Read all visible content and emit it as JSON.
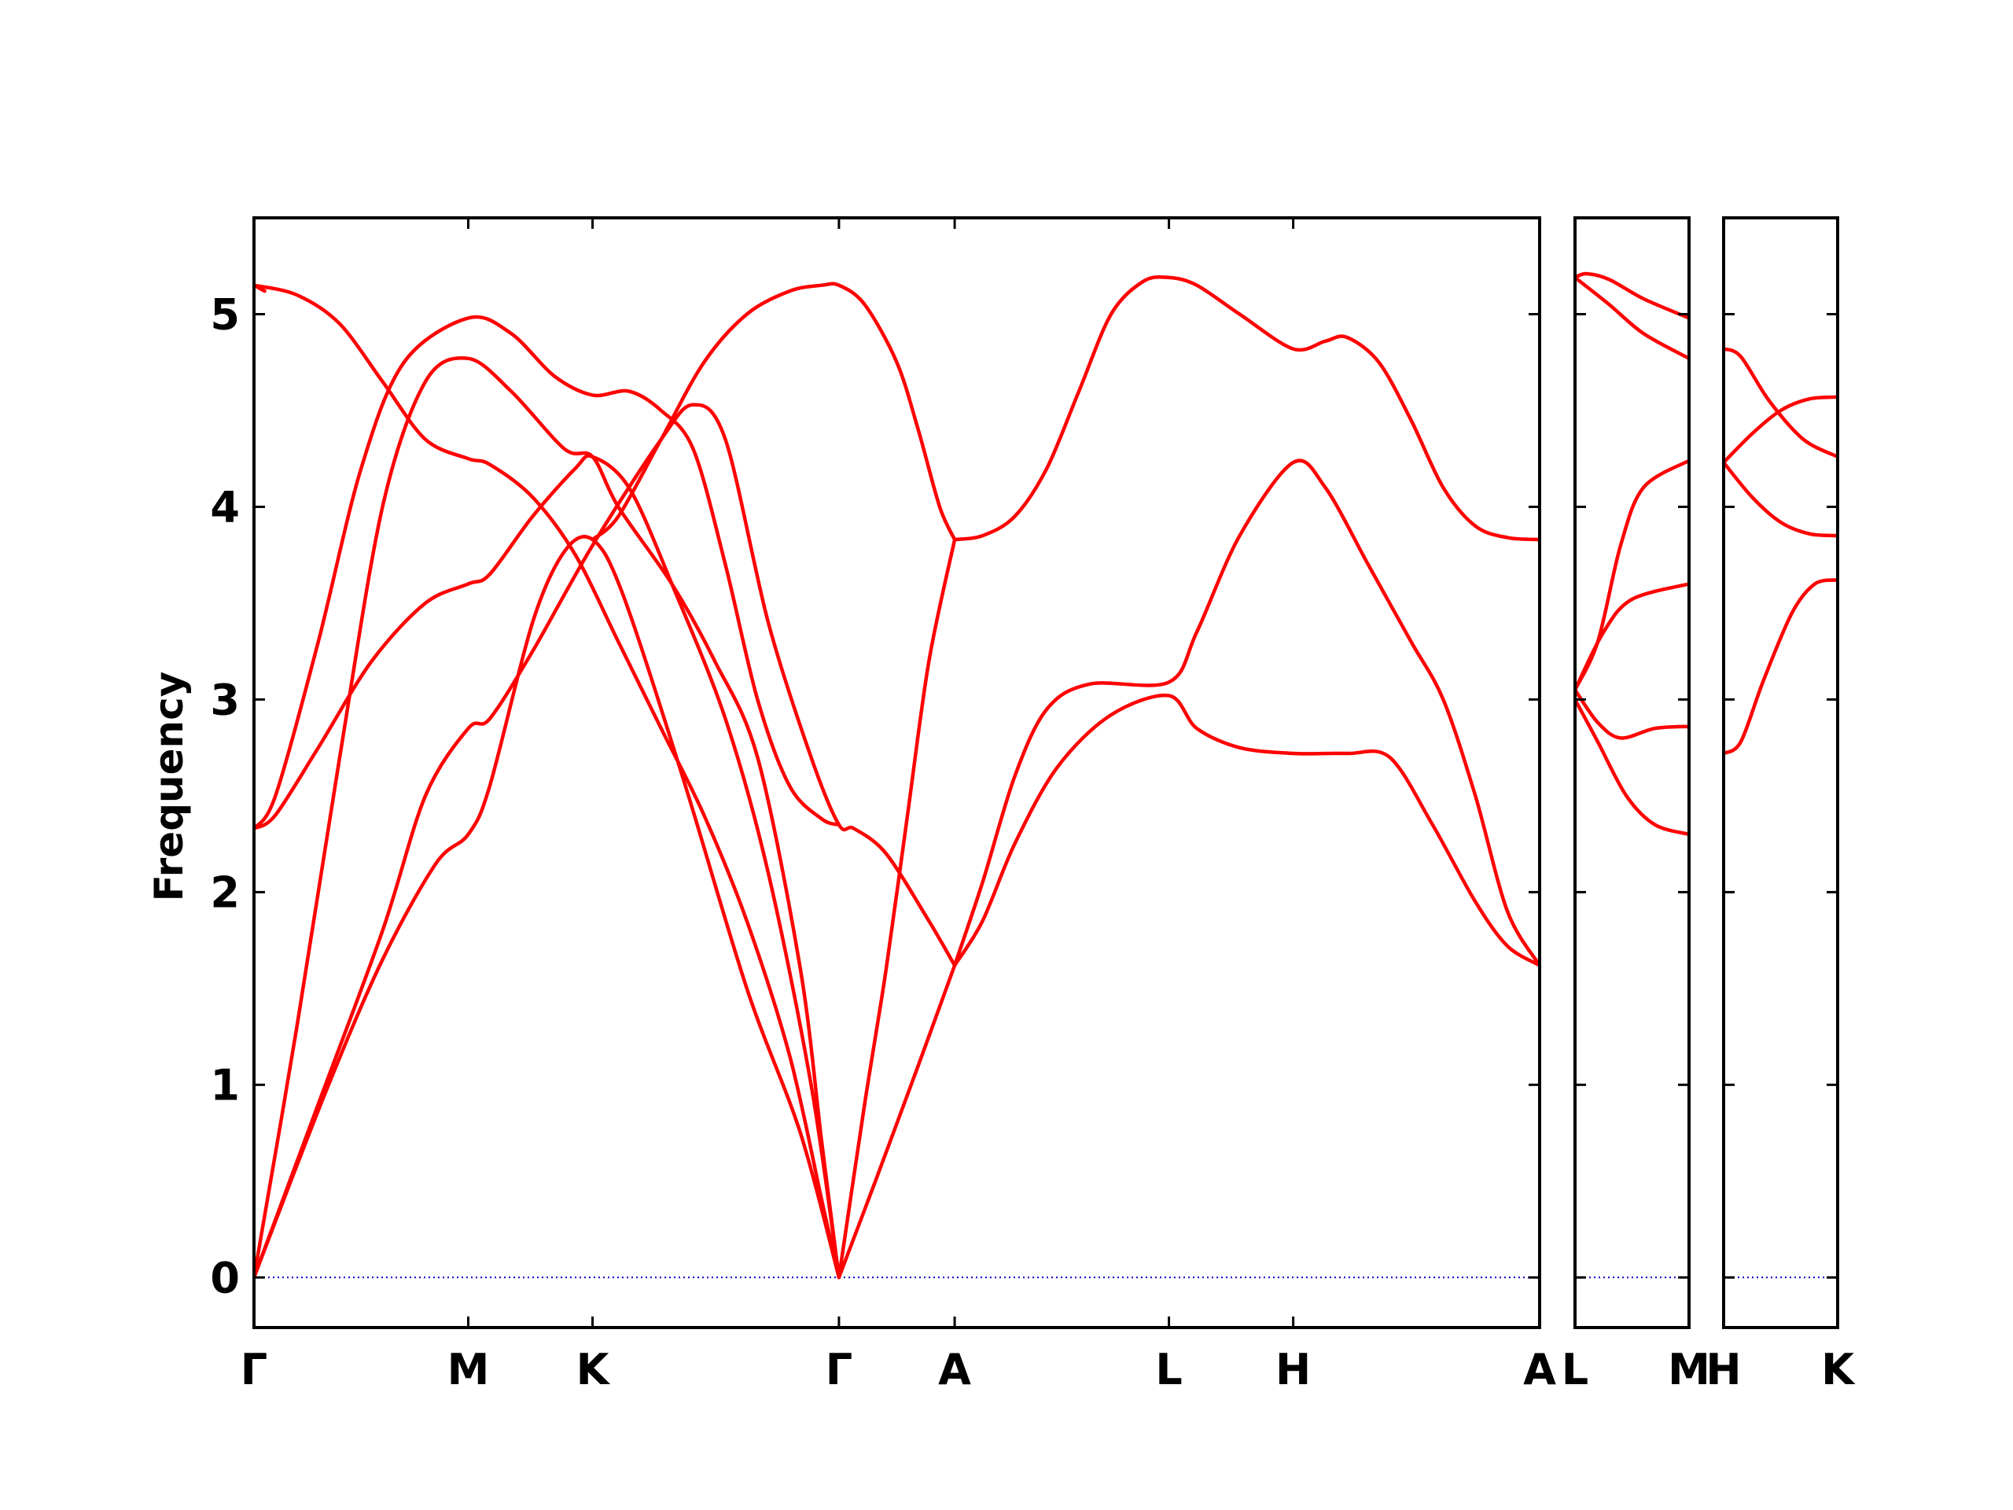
{
  "chart_data": {
    "type": "line",
    "ylabel": "Frequency",
    "ylim": [
      -0.26,
      5.5
    ],
    "yticks": [
      0,
      1,
      2,
      3,
      4,
      5
    ],
    "grid": false,
    "colors": {
      "bands": "#ff0000",
      "zero_line": "#0000cc",
      "axes": "#000000"
    },
    "panels": [
      {
        "xlim": [
          0,
          6.0
        ],
        "ticks": [
          {
            "x": 0,
            "label": "Γ"
          },
          {
            "x": 1.0,
            "label": "M"
          },
          {
            "x": 1.58,
            "label": "K"
          },
          {
            "x": 2.73,
            "label": "Γ"
          },
          {
            "x": 3.27,
            "label": "A"
          },
          {
            "x": 4.27,
            "label": "L"
          },
          {
            "x": 4.85,
            "label": "H"
          },
          {
            "x": 6.0,
            "label": "A"
          }
        ],
        "zero_line": true,
        "series": [
          {
            "points": [
              [
                0,
                0
              ],
              [
                0.33,
                0.95
              ],
              [
                0.6,
                1.65
              ],
              [
                0.85,
                2.15
              ],
              [
                1.0,
                2.3
              ],
              [
                1.1,
                2.55
              ],
              [
                1.3,
                3.4
              ],
              [
                1.45,
                3.77
              ],
              [
                1.58,
                3.83
              ],
              [
                1.72,
                3.55
              ],
              [
                2.0,
                2.6
              ],
              [
                2.3,
                1.5
              ],
              [
                2.55,
                0.75
              ],
              [
                2.73,
                0
              ]
            ]
          },
          {
            "points": [
              [
                0,
                0
              ],
              [
                0.3,
                0.9
              ],
              [
                0.6,
                1.8
              ],
              [
                0.8,
                2.5
              ],
              [
                1.0,
                2.85
              ],
              [
                1.1,
                2.9
              ],
              [
                1.3,
                3.25
              ],
              [
                1.58,
                3.8
              ],
              [
                1.9,
                4.35
              ],
              [
                2.05,
                4.53
              ],
              [
                2.2,
                4.35
              ],
              [
                2.4,
                3.4
              ],
              [
                2.6,
                2.7
              ],
              [
                2.73,
                2.35
              ],
              [
                2.8,
                2.33
              ],
              [
                2.95,
                2.2
              ],
              [
                3.15,
                1.85
              ],
              [
                3.27,
                1.62
              ]
            ]
          },
          {
            "points": [
              [
                0,
                0
              ],
              [
                0.2,
                1.3
              ],
              [
                0.4,
                2.7
              ],
              [
                0.6,
                4.0
              ],
              [
                0.8,
                4.65
              ],
              [
                1.0,
                4.77
              ],
              [
                1.2,
                4.6
              ],
              [
                1.45,
                4.3
              ],
              [
                1.58,
                4.26
              ],
              [
                1.7,
                4.0
              ],
              [
                1.95,
                3.6
              ],
              [
                2.15,
                3.2
              ],
              [
                2.35,
                2.7
              ],
              [
                2.55,
                1.6
              ],
              [
                2.65,
                0.7
              ],
              [
                2.73,
                0
              ]
            ]
          },
          {
            "points": [
              [
                0,
                2.33
              ],
              [
                0.1,
                2.4
              ],
              [
                0.3,
                2.75
              ],
              [
                0.55,
                3.2
              ],
              [
                0.8,
                3.5
              ],
              [
                1.0,
                3.6
              ],
              [
                1.1,
                3.65
              ],
              [
                1.3,
                3.95
              ],
              [
                1.5,
                4.2
              ],
              [
                1.58,
                4.26
              ],
              [
                1.75,
                4.1
              ],
              [
                1.95,
                3.6
              ],
              [
                2.2,
                2.9
              ],
              [
                2.4,
                2.1
              ],
              [
                2.6,
                1.0
              ],
              [
                2.73,
                0
              ]
            ]
          },
          {
            "points": [
              [
                0,
                2.33
              ],
              [
                0.1,
                2.5
              ],
              [
                0.3,
                3.3
              ],
              [
                0.5,
                4.2
              ],
              [
                0.7,
                4.75
              ],
              [
                1.0,
                4.98
              ],
              [
                1.2,
                4.9
              ],
              [
                1.4,
                4.68
              ],
              [
                1.58,
                4.58
              ],
              [
                1.75,
                4.6
              ],
              [
                1.9,
                4.5
              ],
              [
                2.05,
                4.3
              ],
              [
                2.2,
                3.7
              ],
              [
                2.35,
                3.0
              ],
              [
                2.5,
                2.55
              ],
              [
                2.65,
                2.38
              ],
              [
                2.73,
                2.35
              ]
            ]
          },
          {
            "points": [
              [
                0,
                5.15
              ],
              [
                0.2,
                5.1
              ],
              [
                0.4,
                4.95
              ],
              [
                0.6,
                4.65
              ],
              [
                0.8,
                4.35
              ],
              [
                1.0,
                4.25
              ],
              [
                1.1,
                4.22
              ],
              [
                1.3,
                4.05
              ],
              [
                1.5,
                3.75
              ],
              [
                1.7,
                3.3
              ],
              [
                1.9,
                2.85
              ],
              [
                2.1,
                2.4
              ],
              [
                2.3,
                1.85
              ],
              [
                2.5,
                1.15
              ],
              [
                2.65,
                0.4
              ],
              [
                2.73,
                0
              ]
            ]
          },
          {
            "points": [
              [
                0,
                5.15
              ],
              [
                0.05,
                5.12
              ]
            ]
          },
          {
            "points": [
              [
                2.73,
                0
              ],
              [
                2.9,
                0.5
              ],
              [
                3.1,
                1.1
              ],
              [
                3.27,
                1.62
              ]
            ]
          },
          {
            "points": [
              [
                2.73,
                0
              ],
              [
                2.85,
                0.9
              ],
              [
                2.95,
                1.6
              ],
              [
                3.05,
                2.4
              ],
              [
                3.15,
                3.2
              ],
              [
                3.27,
                3.83
              ]
            ]
          },
          {
            "points": [
              [
                1.58,
                3.83
              ],
              [
                1.7,
                3.95
              ],
              [
                1.9,
                4.35
              ],
              [
                2.1,
                4.75
              ],
              [
                2.3,
                5.0
              ],
              [
                2.5,
                5.12
              ],
              [
                2.65,
                5.15
              ],
              [
                2.73,
                5.15
              ],
              [
                2.85,
                5.05
              ],
              [
                3.0,
                4.75
              ],
              [
                3.1,
                4.4
              ],
              [
                3.2,
                4.0
              ],
              [
                3.27,
                3.83
              ]
            ]
          },
          {
            "points": [
              [
                3.27,
                1.62
              ],
              [
                3.4,
                1.85
              ],
              [
                3.55,
                2.25
              ],
              [
                3.75,
                2.65
              ],
              [
                4.0,
                2.92
              ],
              [
                4.27,
                3.02
              ],
              [
                4.4,
                2.85
              ],
              [
                4.6,
                2.75
              ],
              [
                4.85,
                2.72
              ],
              [
                5.1,
                2.72
              ],
              [
                5.3,
                2.7
              ],
              [
                5.5,
                2.35
              ],
              [
                5.7,
                1.95
              ],
              [
                5.85,
                1.72
              ],
              [
                6.0,
                1.62
              ]
            ]
          },
          {
            "points": [
              [
                3.27,
                1.62
              ],
              [
                3.4,
                2.05
              ],
              [
                3.55,
                2.6
              ],
              [
                3.7,
                2.95
              ],
              [
                3.9,
                3.08
              ],
              [
                4.27,
                3.09
              ],
              [
                4.4,
                3.35
              ],
              [
                4.6,
                3.85
              ],
              [
                4.85,
                4.23
              ],
              [
                5.0,
                4.1
              ],
              [
                5.2,
                3.7
              ],
              [
                5.4,
                3.3
              ],
              [
                5.55,
                3.0
              ],
              [
                5.7,
                2.5
              ],
              [
                5.85,
                1.9
              ],
              [
                6.0,
                1.62
              ]
            ]
          },
          {
            "points": [
              [
                3.27,
                3.83
              ],
              [
                3.4,
                3.85
              ],
              [
                3.55,
                3.95
              ],
              [
                3.7,
                4.2
              ],
              [
                3.85,
                4.6
              ],
              [
                4.0,
                5.0
              ],
              [
                4.15,
                5.17
              ],
              [
                4.27,
                5.19
              ],
              [
                4.4,
                5.15
              ],
              [
                4.6,
                5.0
              ],
              [
                4.85,
                4.82
              ],
              [
                5.0,
                4.86
              ],
              [
                5.1,
                4.88
              ],
              [
                5.25,
                4.75
              ],
              [
                5.4,
                4.45
              ],
              [
                5.55,
                4.1
              ],
              [
                5.7,
                3.9
              ],
              [
                5.85,
                3.84
              ],
              [
                6.0,
                3.83
              ]
            ]
          }
        ]
      },
      {
        "xlim": [
          0,
          1
        ],
        "ticks": [
          {
            "x": 0,
            "label": "L"
          },
          {
            "x": 1,
            "label": "M"
          }
        ],
        "zero_line": true,
        "series": [
          {
            "points": [
              [
                0,
                5.19
              ],
              [
                0.1,
                5.21
              ],
              [
                0.3,
                5.18
              ],
              [
                0.6,
                5.08
              ],
              [
                1.0,
                4.98
              ]
            ]
          },
          {
            "points": [
              [
                0,
                5.19
              ],
              [
                0.3,
                5.05
              ],
              [
                0.6,
                4.9
              ],
              [
                1.0,
                4.77
              ]
            ]
          },
          {
            "points": [
              [
                0,
                3.05
              ],
              [
                0.2,
                3.3
              ],
              [
                0.4,
                3.8
              ],
              [
                0.6,
                4.1
              ],
              [
                1.0,
                4.24
              ]
            ]
          },
          {
            "points": [
              [
                0,
                3.05
              ],
              [
                0.25,
                3.35
              ],
              [
                0.5,
                3.52
              ],
              [
                1.0,
                3.6
              ]
            ]
          },
          {
            "points": [
              [
                0,
                3.05
              ],
              [
                0.2,
                2.88
              ],
              [
                0.4,
                2.8
              ],
              [
                0.7,
                2.85
              ],
              [
                1.0,
                2.86
              ]
            ]
          },
          {
            "points": [
              [
                0,
                3.0
              ],
              [
                0.2,
                2.78
              ],
              [
                0.45,
                2.5
              ],
              [
                0.7,
                2.35
              ],
              [
                1.0,
                2.3
              ]
            ]
          }
        ]
      },
      {
        "xlim": [
          0,
          1
        ],
        "ticks": [
          {
            "x": 0,
            "label": "H"
          },
          {
            "x": 1,
            "label": "K"
          }
        ],
        "zero_line": true,
        "series": [
          {
            "points": [
              [
                0,
                4.82
              ],
              [
                0.15,
                4.78
              ],
              [
                0.4,
                4.55
              ],
              [
                0.7,
                4.35
              ],
              [
                1.0,
                4.26
              ]
            ]
          },
          {
            "points": [
              [
                0,
                4.23
              ],
              [
                0.25,
                4.38
              ],
              [
                0.5,
                4.5
              ],
              [
                0.75,
                4.56
              ],
              [
                1.0,
                4.57
              ]
            ]
          },
          {
            "points": [
              [
                0,
                4.23
              ],
              [
                0.25,
                4.05
              ],
              [
                0.5,
                3.92
              ],
              [
                0.75,
                3.86
              ],
              [
                1.0,
                3.85
              ]
            ]
          },
          {
            "points": [
              [
                0,
                2.72
              ],
              [
                0.15,
                2.78
              ],
              [
                0.35,
                3.1
              ],
              [
                0.6,
                3.45
              ],
              [
                0.8,
                3.6
              ],
              [
                1.0,
                3.62
              ]
            ]
          }
        ]
      }
    ]
  }
}
